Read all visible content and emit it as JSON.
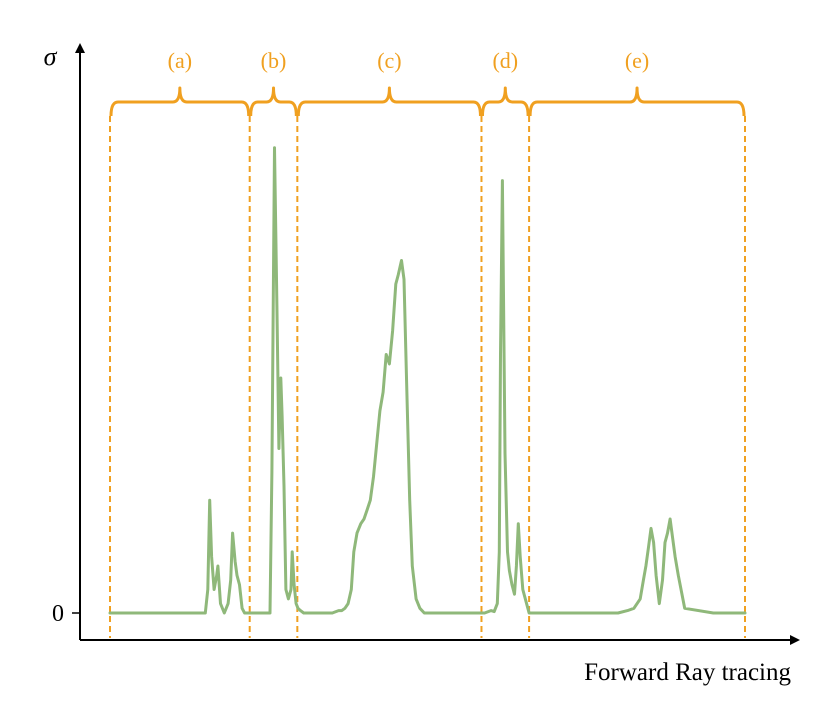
{
  "chart_data": {
    "type": "line",
    "title": "",
    "xlabel": "Forward Ray tracing",
    "ylabel": "σ",
    "yticks": [
      {
        "label": "0",
        "value": 0
      }
    ],
    "xlim": [
      0,
      100
    ],
    "ylim": [
      -0.12,
      1.3
    ],
    "grid": false,
    "colors": {
      "line": "#8fb87a",
      "region": "#f0a020",
      "axis": "#000000"
    },
    "regions": [
      {
        "label": "(a)",
        "start": 0,
        "end": 22
      },
      {
        "label": "(b)",
        "start": 22,
        "end": 29.5
      },
      {
        "label": "(c)",
        "start": 29.5,
        "end": 58.5
      },
      {
        "label": "(d)",
        "start": 58.5,
        "end": 66
      },
      {
        "label": "(e)",
        "start": 66,
        "end": 100
      }
    ],
    "series": [
      {
        "x": [
          0,
          15,
          15.4,
          15.7,
          16.0,
          16.4,
          16.8,
          17.0,
          17.4,
          18.0,
          18.6,
          19.0,
          19.3,
          19.7,
          20.0,
          20.4,
          20.8,
          21.2,
          22,
          25.2,
          25.5,
          25.9,
          26.3,
          26.6,
          26.9,
          27.1,
          27.4,
          27.7,
          28.1,
          28.5,
          28.7,
          29.0,
          29.3,
          29.6,
          30.0,
          30.5,
          31.2,
          33,
          34,
          35,
          36,
          36.5,
          37,
          37.5,
          38,
          38.4,
          38.9,
          39.5,
          40.0,
          40.5,
          41.0,
          41.5,
          42.0,
          42.5,
          43.0,
          43.5,
          44.0,
          44.5,
          45.0,
          45.4,
          45.9,
          46.3,
          46.7,
          47.2,
          47.6,
          48.2,
          48.8,
          49.5,
          51,
          54,
          57,
          58.5,
          59,
          60,
          60.5,
          61.0,
          61.3,
          61.5,
          61.8,
          62.2,
          62.6,
          62.9,
          63.3,
          63.7,
          64.0,
          64.3,
          64.6,
          65.0,
          66,
          70,
          80,
          81.5,
          82.5,
          83.5,
          84.0,
          84.4,
          84.8,
          85.2,
          85.6,
          86.0,
          86.5,
          87.0,
          87.4,
          87.8,
          88.2,
          88.6,
          89.0,
          89.5,
          90.5,
          95,
          100
        ],
        "y": [
          0,
          0,
          0.05,
          0.24,
          0.12,
          0.05,
          0.08,
          0.1,
          0.02,
          0.0,
          0.02,
          0.07,
          0.17,
          0.11,
          0.08,
          0.06,
          0.01,
          0.0,
          0,
          0,
          0.3,
          0.99,
          0.64,
          0.35,
          0.5,
          0.42,
          0.27,
          0.05,
          0.03,
          0.05,
          0.13,
          0.06,
          0.02,
          0.01,
          0.005,
          0,
          0,
          0,
          0,
          0,
          0.005,
          0.005,
          0.01,
          0.02,
          0.05,
          0.13,
          0.17,
          0.19,
          0.2,
          0.22,
          0.24,
          0.29,
          0.36,
          0.43,
          0.47,
          0.55,
          0.53,
          0.6,
          0.7,
          0.72,
          0.75,
          0.71,
          0.5,
          0.24,
          0.1,
          0.03,
          0.01,
          0,
          0,
          0,
          0,
          0,
          0,
          0.005,
          0.003,
          0.02,
          0.13,
          0.55,
          0.92,
          0.34,
          0.13,
          0.09,
          0.06,
          0.04,
          0.1,
          0.19,
          0.12,
          0.05,
          0,
          0,
          0,
          0.005,
          0.01,
          0.03,
          0.07,
          0.1,
          0.14,
          0.18,
          0.15,
          0.08,
          0.02,
          0.07,
          0.15,
          0.17,
          0.2,
          0.16,
          0.12,
          0.08,
          0.01,
          0,
          0
        ]
      }
    ]
  }
}
